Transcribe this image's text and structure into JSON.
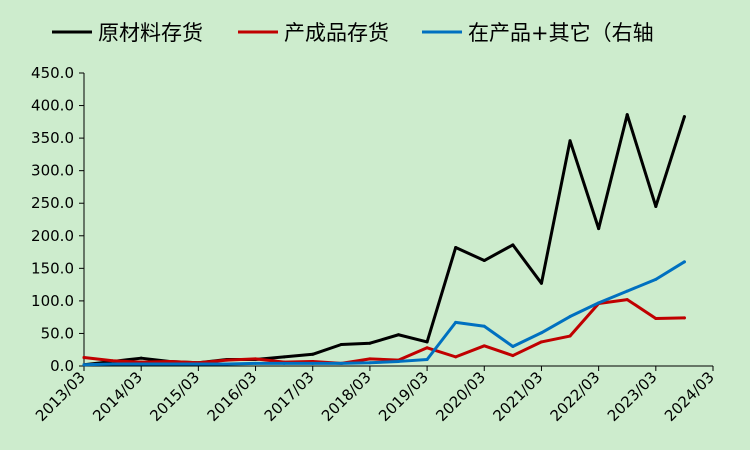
{
  "chart_data": {
    "type": "line",
    "title": "",
    "xlabel": "",
    "ylabel": "",
    "ylim": [
      0,
      450
    ],
    "y_ticks": [
      "0.0",
      "50.0",
      "100.0",
      "150.0",
      "200.0",
      "250.0",
      "300.0",
      "350.0",
      "400.0",
      "450.0"
    ],
    "x_ticks": [
      "2013/03",
      "2014/03",
      "2015/03",
      "2016/03",
      "2017/03",
      "2018/03",
      "2019/03",
      "2020/03",
      "2021/03",
      "2022/03",
      "2023/03",
      "2024/03"
    ],
    "grid": false,
    "legend_position": "top",
    "x": [
      "2013/03",
      "2013/09",
      "2014/03",
      "2014/09",
      "2015/03",
      "2015/09",
      "2016/03",
      "2016/09",
      "2017/03",
      "2017/09",
      "2018/03",
      "2018/09",
      "2019/03",
      "2019/09",
      "2020/03",
      "2020/09",
      "2021/03",
      "2021/09",
      "2022/03",
      "2022/09",
      "2023/03",
      "2023/09",
      "2024/03"
    ],
    "series": [
      {
        "name": "原材料存货",
        "color": "#000000",
        "values": [
          2,
          7,
          12,
          7,
          5,
          10,
          10,
          14,
          18,
          33,
          35,
          48,
          37,
          182,
          162,
          186,
          127,
          346,
          211,
          386,
          245,
          383,
          null
        ]
      },
      {
        "name": "产成品存货",
        "color": "#c00000",
        "values": [
          13,
          8,
          6,
          7,
          5,
          9,
          11,
          6,
          7,
          4,
          11,
          9,
          28,
          14,
          31,
          16,
          37,
          46,
          96,
          102,
          73,
          74,
          null
        ]
      },
      {
        "name": "在产品+其它（右轴",
        "color": "#0070c0",
        "values": [
          2,
          3,
          3,
          3,
          3,
          3,
          4,
          4,
          4,
          4,
          5,
          7,
          10,
          67,
          61,
          30,
          51,
          76,
          97,
          115,
          133,
          160,
          null
        ]
      }
    ]
  }
}
